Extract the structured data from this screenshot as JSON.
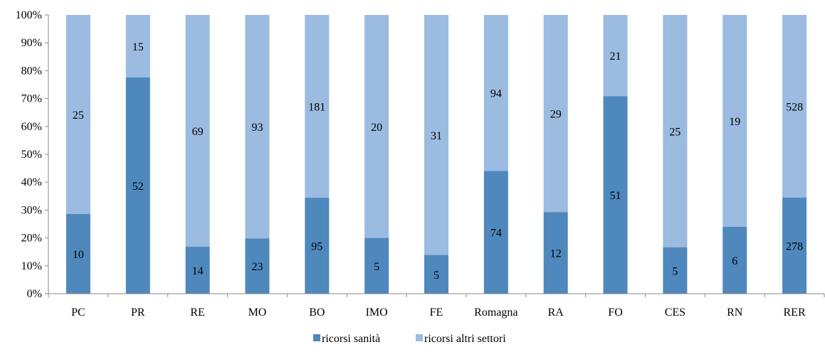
{
  "chart_data": {
    "type": "bar",
    "stacked": "percent",
    "categories": [
      "PC",
      "PR",
      "RE",
      "MO",
      "BO",
      "IMO",
      "FE",
      "Romagna",
      "RA",
      "FO",
      "CES",
      "RN",
      "RER"
    ],
    "series": [
      {
        "name": "ricorsi sanità",
        "values": [
          10,
          52,
          14,
          23,
          95,
          5,
          5,
          74,
          12,
          51,
          5,
          6,
          278
        ],
        "color": "#4f88bd"
      },
      {
        "name": "ricorsi altri settori",
        "values": [
          25,
          15,
          69,
          93,
          181,
          20,
          31,
          94,
          29,
          21,
          25,
          19,
          528
        ],
        "color": "#9bbbe0"
      }
    ],
    "y_ticks": [
      "0%",
      "10%",
      "20%",
      "30%",
      "40%",
      "50%",
      "60%",
      "70%",
      "80%",
      "90%",
      "100%"
    ],
    "ylim": [
      0,
      100
    ],
    "legend_position": "bottom",
    "grid": false
  }
}
